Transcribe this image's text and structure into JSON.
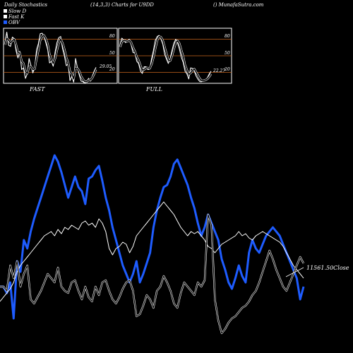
{
  "header": {
    "left": "Daily Stochastics",
    "middle": "(14,3,3) Charts for U9DD",
    "right": "() MunafaSutra.com"
  },
  "legend": [
    {
      "label": "Slow D",
      "color": "#ffffff"
    },
    {
      "label": "Fast K",
      "color": "#ffffff"
    },
    {
      "label": "OBV",
      "color": "#1e5cff"
    }
  ],
  "colors": {
    "background": "#000000",
    "panel_border": "#ffffff",
    "level_line": "#c8641e",
    "obv": "#1e5cff",
    "price": "#ffffff",
    "stoch": "#ffffff"
  },
  "chart_data": [
    {
      "type": "line",
      "title": "FAST",
      "ylim": [
        0,
        100
      ],
      "levels": [
        20,
        50,
        80
      ],
      "tick_labels": [
        "80",
        "50",
        "20"
      ],
      "last_value_label": "29.05",
      "x": [
        1,
        2,
        3,
        4,
        5,
        6,
        7,
        8,
        9,
        10,
        11,
        12,
        13,
        14,
        15,
        16,
        17,
        18,
        19,
        20,
        21,
        22,
        23,
        24,
        25,
        26,
        27,
        28,
        29,
        30,
        31,
        32,
        33,
        34,
        35,
        36,
        37,
        38,
        39,
        40,
        41,
        42,
        43,
        44,
        45,
        46,
        47,
        48,
        49,
        50
      ],
      "series": [
        {
          "name": "Fast K",
          "values": [
            74,
            93,
            69,
            67,
            84,
            81,
            59,
            46,
            58,
            25,
            28,
            9,
            17,
            45,
            32,
            19,
            28,
            61,
            72,
            90,
            91,
            85,
            74,
            61,
            37,
            40,
            31,
            57,
            74,
            83,
            85,
            63,
            50,
            32,
            35,
            5,
            13,
            2,
            45,
            28,
            15,
            4,
            3,
            0,
            3,
            9,
            4,
            13,
            22,
            29
          ]
        },
        {
          "name": "Slow D",
          "values": [
            70,
            82,
            78,
            74,
            77,
            80,
            70,
            56,
            55,
            40,
            36,
            22,
            18,
            30,
            30,
            25,
            26,
            45,
            60,
            78,
            85,
            87,
            81,
            71,
            53,
            44,
            36,
            45,
            60,
            73,
            80,
            73,
            62,
            47,
            38,
            22,
            17,
            8,
            28,
            27,
            22,
            13,
            7,
            3,
            3,
            6,
            6,
            10,
            17,
            25
          ]
        }
      ]
    },
    {
      "type": "line",
      "title": "FULL",
      "ylim": [
        0,
        100
      ],
      "levels": [
        20,
        50,
        80
      ],
      "tick_labels": [
        "80",
        "50",
        "20"
      ],
      "last_value_label": "22.27",
      "x": [
        1,
        2,
        3,
        4,
        5,
        6,
        7,
        8,
        9,
        10,
        11,
        12,
        13,
        14,
        15,
        16,
        17,
        18,
        19,
        20,
        21,
        22,
        23,
        24,
        25,
        26,
        27,
        28,
        29,
        30,
        31,
        32,
        33,
        34,
        35,
        36,
        37,
        38,
        39,
        40,
        41,
        42,
        43,
        44,
        45,
        46,
        47,
        48,
        49,
        50
      ],
      "series": [
        {
          "name": "Fast K",
          "values": [
            70,
            82,
            78,
            74,
            77,
            80,
            70,
            56,
            55,
            40,
            36,
            22,
            18,
            30,
            30,
            25,
            26,
            45,
            60,
            78,
            85,
            87,
            81,
            71,
            53,
            44,
            36,
            45,
            60,
            73,
            80,
            73,
            62,
            47,
            38,
            22,
            17,
            8,
            28,
            27,
            22,
            13,
            7,
            3,
            3,
            6,
            6,
            10,
            17,
            22
          ]
        },
        {
          "name": "Slow D",
          "values": [
            66,
            75,
            78,
            77,
            76,
            78,
            74,
            65,
            58,
            48,
            42,
            32,
            24,
            25,
            28,
            28,
            27,
            35,
            47,
            63,
            78,
            85,
            84,
            78,
            66,
            54,
            42,
            41,
            50,
            62,
            74,
            77,
            72,
            60,
            49,
            33,
            24,
            16,
            19,
            23,
            26,
            20,
            14,
            8,
            5,
            5,
            6,
            8,
            12,
            17
          ]
        }
      ]
    },
    {
      "type": "line",
      "title": "",
      "ylim": [
        0,
        100
      ],
      "last_value_label": "11561.50Close",
      "x": [
        1,
        2,
        3,
        4,
        5,
        6,
        7,
        8,
        9,
        10,
        11,
        12,
        13,
        14,
        15,
        16,
        17,
        18,
        19,
        20,
        21,
        22,
        23,
        24,
        25,
        26,
        27,
        28,
        29,
        30,
        31,
        32,
        33,
        34,
        35,
        36,
        37,
        38,
        39,
        40,
        41,
        42,
        43,
        44,
        45,
        46,
        47,
        48,
        49,
        50,
        51,
        52,
        53,
        54,
        55,
        56,
        57,
        58,
        59,
        60,
        61,
        62,
        63,
        64,
        65,
        66,
        67,
        68,
        69,
        70,
        71,
        72,
        73,
        74,
        75,
        76,
        77,
        78,
        79,
        80,
        81,
        82,
        83,
        84,
        85,
        86,
        87,
        88,
        89,
        90
      ],
      "series": [
        {
          "name": "OBV",
          "values": [
            28,
            28,
            25,
            30,
            13,
            40,
            35,
            50,
            46,
            54,
            60,
            65,
            70,
            75,
            80,
            85,
            90,
            87,
            82,
            76,
            70,
            75,
            80,
            75,
            73,
            67,
            79,
            80,
            83,
            85,
            78,
            70,
            64,
            56,
            50,
            44,
            38,
            34,
            30,
            34,
            40,
            30,
            34,
            39,
            44,
            56,
            64,
            70,
            75,
            76,
            80,
            86,
            88,
            84,
            80,
            76,
            70,
            65,
            58,
            52,
            56,
            62,
            58,
            54,
            50,
            41,
            36,
            30,
            27,
            32,
            38,
            33,
            30,
            44,
            50,
            46,
            44,
            48,
            52,
            54,
            56,
            54,
            52,
            48,
            44,
            40,
            36,
            32,
            22,
            28
          ]
        },
        {
          "name": "Close",
          "values": [
            21,
            23,
            25,
            27,
            30,
            35,
            38,
            40,
            42,
            44,
            46,
            48,
            50,
            52,
            53,
            54,
            52,
            55,
            53,
            56,
            55,
            57,
            56,
            55,
            58,
            59,
            57,
            58,
            56,
            60,
            58,
            54,
            46,
            43,
            46,
            47,
            49,
            48,
            44,
            47,
            52,
            54,
            56,
            58,
            60,
            62,
            64,
            66,
            68,
            66,
            64,
            62,
            59,
            56,
            54,
            52,
            54,
            53,
            54,
            52,
            50,
            47,
            46,
            44,
            46,
            48,
            49,
            50,
            51,
            52,
            54,
            52,
            53,
            51,
            50,
            52,
            53,
            54,
            53,
            52,
            51,
            50,
            49,
            47,
            44,
            41,
            38,
            36,
            34,
            32
          ]
        },
        {
          "name": "Stoch",
          "values": [
            28,
            28,
            26,
            38,
            32,
            40,
            28,
            34,
            38,
            22,
            20,
            23,
            26,
            30,
            34,
            32,
            30,
            37,
            28,
            26,
            25,
            30,
            31,
            26,
            22,
            28,
            23,
            21,
            28,
            24,
            30,
            31,
            26,
            22,
            20,
            23,
            27,
            30,
            31,
            26,
            14,
            15,
            19,
            24,
            22,
            18,
            26,
            28,
            33,
            30,
            26,
            20,
            18,
            25,
            30,
            28,
            26,
            24,
            30,
            28,
            31,
            62,
            57,
            22,
            12,
            6,
            8,
            11,
            13,
            14,
            16,
            18,
            19,
            21,
            24,
            26,
            30,
            35,
            40,
            45,
            41,
            36,
            32,
            28,
            26,
            30,
            34,
            38,
            42,
            39
          ]
        }
      ]
    }
  ]
}
